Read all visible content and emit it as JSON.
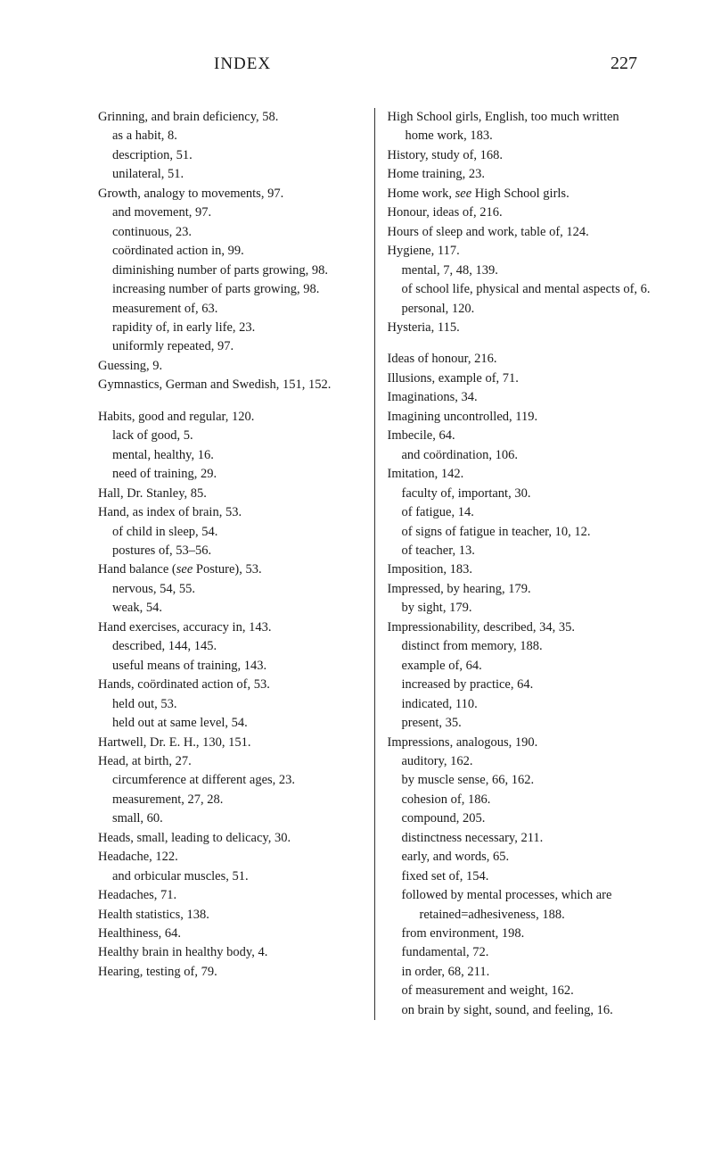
{
  "header": {
    "title": "INDEX",
    "pageNumber": "227"
  },
  "left": [
    {
      "t": "entry",
      "v": "Grinning, and brain deficiency, 58."
    },
    {
      "t": "sub",
      "v": "as a habit, 8."
    },
    {
      "t": "sub",
      "v": "description, 51."
    },
    {
      "t": "sub",
      "v": "unilateral, 51."
    },
    {
      "t": "entry",
      "v": "Growth, analogy to movements, 97."
    },
    {
      "t": "sub",
      "v": "and movement, 97."
    },
    {
      "t": "sub",
      "v": "continuous, 23."
    },
    {
      "t": "sub",
      "v": "coördinated action in, 99."
    },
    {
      "t": "sub",
      "v": "diminishing number of parts growing, 98."
    },
    {
      "t": "sub",
      "v": "increasing number of parts growing, 98."
    },
    {
      "t": "sub",
      "v": "measurement of, 63."
    },
    {
      "t": "sub",
      "v": "rapidity of, in early life, 23."
    },
    {
      "t": "sub",
      "v": "uniformly repeated, 97."
    },
    {
      "t": "entry",
      "v": "Guessing, 9."
    },
    {
      "t": "entry",
      "v": "Gymnastics, German and Swedish, 151, 152."
    },
    {
      "t": "gap"
    },
    {
      "t": "entry",
      "v": "Habits, good and regular, 120."
    },
    {
      "t": "sub",
      "v": "lack of good, 5."
    },
    {
      "t": "sub",
      "v": "mental, healthy, 16."
    },
    {
      "t": "sub",
      "v": "need of training, 29."
    },
    {
      "t": "entry",
      "v": "Hall, Dr. Stanley, 85."
    },
    {
      "t": "entry",
      "v": "Hand, as index of brain, 53."
    },
    {
      "t": "sub",
      "v": "of child in sleep, 54."
    },
    {
      "t": "sub",
      "v": "postures of, 53–56."
    },
    {
      "t": "entry",
      "v": "Hand balance (see Posture), 53.",
      "italic": "see"
    },
    {
      "t": "sub",
      "v": "nervous, 54, 55."
    },
    {
      "t": "sub",
      "v": "weak, 54."
    },
    {
      "t": "entry",
      "v": "Hand exercises, accuracy in, 143."
    },
    {
      "t": "sub",
      "v": "described, 144, 145."
    },
    {
      "t": "sub",
      "v": "useful means of training, 143."
    },
    {
      "t": "entry",
      "v": "Hands, coördinated action of, 53."
    },
    {
      "t": "sub",
      "v": "held out, 53."
    },
    {
      "t": "sub",
      "v": "held out at same level, 54."
    },
    {
      "t": "entry",
      "v": "Hartwell, Dr. E. H., 130, 151."
    },
    {
      "t": "entry",
      "v": "Head, at birth, 27."
    },
    {
      "t": "sub",
      "v": "circumference at different ages, 23."
    },
    {
      "t": "sub",
      "v": "measurement, 27, 28."
    },
    {
      "t": "sub",
      "v": "small, 60."
    },
    {
      "t": "entry",
      "v": "Heads, small, leading to delicacy, 30."
    },
    {
      "t": "entry",
      "v": "Headache, 122."
    },
    {
      "t": "sub",
      "v": "and orbicular muscles, 51."
    },
    {
      "t": "entry",
      "v": "Headaches, 71."
    },
    {
      "t": "entry",
      "v": "Health statistics, 138."
    },
    {
      "t": "entry",
      "v": "Healthiness, 64."
    },
    {
      "t": "entry",
      "v": "Healthy brain in healthy body, 4."
    },
    {
      "t": "entry",
      "v": "Hearing, testing of, 79."
    }
  ],
  "right": [
    {
      "t": "entry",
      "v": "High School girls, English, too much written home work, 183."
    },
    {
      "t": "entry",
      "v": "History, study of, 168."
    },
    {
      "t": "entry",
      "v": "Home training, 23."
    },
    {
      "t": "entry",
      "v": "Home work, see High School girls.",
      "italic": "see"
    },
    {
      "t": "entry",
      "v": "Honour, ideas of, 216."
    },
    {
      "t": "entry",
      "v": "Hours of sleep and work, table of, 124."
    },
    {
      "t": "entry",
      "v": "Hygiene, 117."
    },
    {
      "t": "sub",
      "v": "mental, 7, 48, 139."
    },
    {
      "t": "sub",
      "v": "of school life, physical and mental aspects of, 6."
    },
    {
      "t": "sub",
      "v": "personal, 120."
    },
    {
      "t": "entry",
      "v": "Hysteria, 115."
    },
    {
      "t": "gap"
    },
    {
      "t": "entry",
      "v": "Ideas of honour, 216."
    },
    {
      "t": "entry",
      "v": "Illusions, example of, 71."
    },
    {
      "t": "entry",
      "v": "Imaginations, 34."
    },
    {
      "t": "entry",
      "v": "Imagining uncontrolled, 119."
    },
    {
      "t": "entry",
      "v": "Imbecile, 64."
    },
    {
      "t": "sub",
      "v": "and coördination, 106."
    },
    {
      "t": "entry",
      "v": "Imitation, 142."
    },
    {
      "t": "sub",
      "v": "faculty of, important, 30."
    },
    {
      "t": "sub",
      "v": "of fatigue, 14."
    },
    {
      "t": "sub",
      "v": "of signs of fatigue in teacher, 10, 12."
    },
    {
      "t": "sub",
      "v": "of teacher, 13."
    },
    {
      "t": "entry",
      "v": "Imposition, 183."
    },
    {
      "t": "entry",
      "v": "Impressed, by hearing, 179."
    },
    {
      "t": "sub",
      "v": "by sight, 179."
    },
    {
      "t": "entry",
      "v": "Impressionability, described, 34, 35."
    },
    {
      "t": "sub",
      "v": "distinct from memory, 188."
    },
    {
      "t": "sub",
      "v": "example of, 64."
    },
    {
      "t": "sub",
      "v": "increased by practice, 64."
    },
    {
      "t": "sub",
      "v": "indicated, 110."
    },
    {
      "t": "sub",
      "v": "present, 35."
    },
    {
      "t": "entry",
      "v": "Impressions, analogous, 190."
    },
    {
      "t": "sub",
      "v": "auditory, 162."
    },
    {
      "t": "sub",
      "v": "by muscle sense, 66, 162."
    },
    {
      "t": "sub",
      "v": "cohesion of, 186."
    },
    {
      "t": "sub",
      "v": "compound, 205."
    },
    {
      "t": "sub",
      "v": "distinctness necessary, 211."
    },
    {
      "t": "sub",
      "v": "early, and words, 65."
    },
    {
      "t": "sub",
      "v": "fixed set of, 154."
    },
    {
      "t": "sub",
      "v": "followed by mental processes, which are retained=adhesiveness, 188."
    },
    {
      "t": "sub",
      "v": "from environment, 198."
    },
    {
      "t": "sub",
      "v": "fundamental, 72."
    },
    {
      "t": "sub",
      "v": "in order, 68, 211."
    },
    {
      "t": "sub",
      "v": "of measurement and weight, 162."
    },
    {
      "t": "sub",
      "v": "on brain by sight, sound, and feeling, 16."
    }
  ]
}
